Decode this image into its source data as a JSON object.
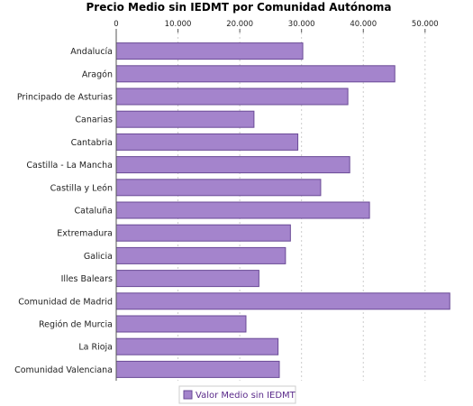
{
  "chart_data": {
    "type": "bar",
    "orientation": "horizontal",
    "title": "Precio Medio sin IEDMT por Comunidad Autónoma",
    "categories": [
      "Andalucía",
      "Aragón",
      "Principado de Asturias",
      "Canarias",
      "Cantabria",
      "Castilla - La Mancha",
      "Castilla y León",
      "Cataluña",
      "Extremadura",
      "Galicia",
      "Illes Balears",
      "Comunidad de Madrid",
      "Región de Murcia",
      "La Rioja",
      "Comunidad Valenciana"
    ],
    "series": [
      {
        "name": "Valor Medio sin IEDMT",
        "values": [
          30200,
          45100,
          37500,
          22300,
          29400,
          37800,
          33100,
          41000,
          28200,
          27400,
          23100,
          54000,
          21000,
          26200,
          26400
        ]
      }
    ],
    "xlim": [
      0,
      56300
    ],
    "ticks": [
      {
        "value": 0,
        "label": "0"
      },
      {
        "value": 10000,
        "label": "10.000"
      },
      {
        "value": 20000,
        "label": "20.000"
      },
      {
        "value": 30000,
        "label": "30.000"
      },
      {
        "value": 40000,
        "label": "40.000"
      },
      {
        "value": 50000,
        "label": "50.000"
      }
    ],
    "xlabel": "",
    "ylabel": "",
    "grid": true,
    "legend_position": "bottom-center",
    "colors": {
      "bar_fill": "#a484cc",
      "bar_stroke": "#6a4a96",
      "grid": "#cccccc",
      "axis": "#555555",
      "legend_text": "#5a2a8a"
    }
  }
}
